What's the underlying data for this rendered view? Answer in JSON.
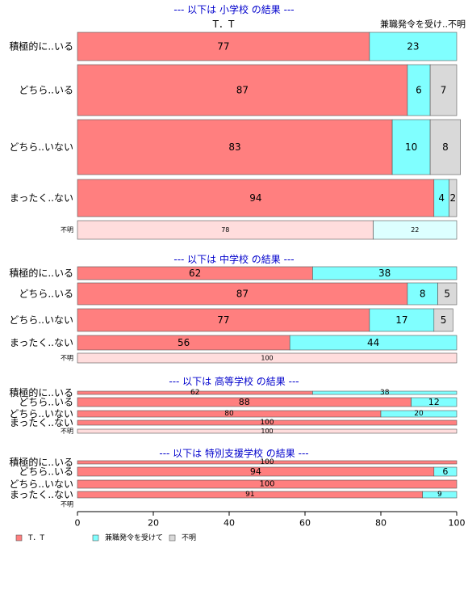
{
  "chart_data": {
    "type": "bar",
    "orientation": "horizontal",
    "stacked": true,
    "percent": true,
    "xlim": [
      0,
      100
    ],
    "xticks": [
      "0",
      "20",
      "40",
      "60",
      "80",
      "100"
    ],
    "grid": false,
    "legend_position": "bottom-left",
    "colors": {
      "tt": "#ff7f7f",
      "kenshoku": "#80ffff",
      "fumei": "#d9d9d9"
    },
    "series": [
      {
        "key": "tt",
        "name": "T．T"
      },
      {
        "key": "kenshoku",
        "name": "兼職発令を受けて"
      },
      {
        "key": "fumei",
        "name": "不明"
      }
    ],
    "panels": [
      {
        "title": "--- 以下は 小学校 の結果 ---",
        "header_labels": {
          "left": "T．T",
          "right": "兼職発令を受け..不明"
        },
        "rows": [
          {
            "category": "積極的に..いる",
            "values": [
              77,
              23,
              0
            ]
          },
          {
            "category": "どちら..いる",
            "values": [
              87,
              6,
              7
            ]
          },
          {
            "category": "どちら..いない",
            "values": [
              83,
              10,
              8
            ]
          },
          {
            "category": "まったく..ない",
            "values": [
              94,
              4,
              2
            ]
          },
          {
            "category": "不明",
            "values": [
              78,
              22,
              0
            ],
            "faded": true
          }
        ]
      },
      {
        "title": "--- 以下は 中学校 の結果 ---",
        "rows": [
          {
            "category": "積極的に..いる",
            "values": [
              62,
              38,
              0
            ]
          },
          {
            "category": "どちら..いる",
            "values": [
              87,
              8,
              5
            ]
          },
          {
            "category": "どちら..いない",
            "values": [
              77,
              17,
              5
            ]
          },
          {
            "category": "まったく..ない",
            "values": [
              56,
              44,
              0
            ]
          },
          {
            "category": "不明",
            "values": [
              100,
              0,
              0
            ],
            "faded": true
          }
        ]
      },
      {
        "title": "--- 以下は 高等学校 の結果 ---",
        "rows": [
          {
            "category": "積極的に..いる",
            "values": [
              62,
              38,
              0
            ]
          },
          {
            "category": "どちら..いる",
            "values": [
              88,
              12,
              0
            ]
          },
          {
            "category": "どちら..いない",
            "values": [
              80,
              20,
              0
            ]
          },
          {
            "category": "まったく..ない",
            "values": [
              100,
              0,
              0
            ]
          },
          {
            "category": "不明",
            "values": [
              100,
              0,
              0
            ],
            "faded": true
          }
        ]
      },
      {
        "title": "--- 以下は 特別支援学校 の結果 ---",
        "rows": [
          {
            "category": "積極的に..いる",
            "values": [
              100,
              0,
              0
            ]
          },
          {
            "category": "どちら..いる",
            "values": [
              94,
              6,
              0
            ]
          },
          {
            "category": "どちら..いない",
            "values": [
              100,
              0,
              0
            ]
          },
          {
            "category": "まったく..ない",
            "values": [
              91,
              9,
              0
            ]
          },
          {
            "category": "不明",
            "values": [
              0,
              0,
              0
            ],
            "faded": true
          }
        ]
      }
    ]
  }
}
